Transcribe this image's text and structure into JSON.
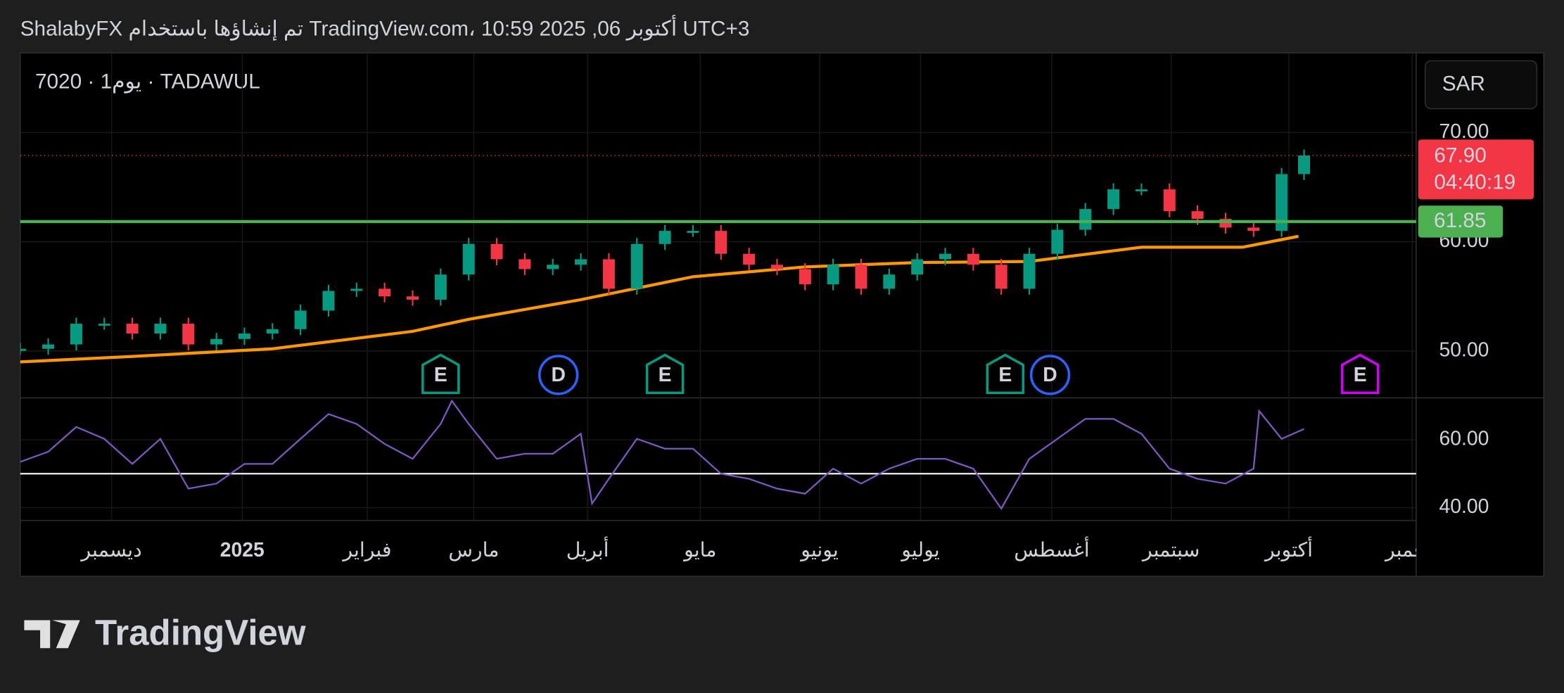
{
  "header": {
    "caption": "ShalabyFX تم إنشاؤها باستخدام TradingView.com، 10:59 2025 ,06 أكتوبر UTC+3",
    "symbol": "7020 · 1يوم · TADAWUL",
    "currency": "SAR",
    "logo": "TradingView"
  },
  "chart_data": {
    "type": "candlestick",
    "x": [
      0,
      5,
      10,
      15,
      20,
      25,
      30,
      35,
      40,
      45,
      50,
      55,
      60,
      65,
      70,
      75,
      80,
      85,
      90,
      95,
      100,
      105,
      110,
      115,
      120,
      125,
      130,
      135,
      140,
      145,
      150,
      155,
      160,
      165,
      170,
      175,
      180,
      185,
      190,
      195,
      200,
      205,
      210,
      215,
      220,
      225,
      229
    ],
    "values": [
      50.2,
      50.6,
      52.5,
      52.5,
      51.6,
      52.5,
      50.6,
      51.1,
      51.6,
      52.0,
      53.7,
      55.5,
      55.7,
      55.0,
      54.7,
      57.0,
      59.8,
      58.4,
      57.5,
      57.9,
      58.4,
      55.7,
      59.8,
      61.0,
      61.0,
      58.9,
      57.9,
      57.5,
      56.1,
      57.9,
      55.7,
      57.0,
      58.4,
      58.9,
      57.9,
      55.7,
      58.9,
      61.1,
      63.0,
      64.8,
      64.8,
      62.8,
      62.1,
      61.3,
      61.0,
      66.2,
      67.9
    ],
    "up_color": "#089981",
    "down_color": "#f23645",
    "ma": {
      "x": [
        0,
        20,
        45,
        70,
        80,
        100,
        120,
        140,
        160,
        180,
        200,
        218,
        228
      ],
      "values": [
        49.0,
        49.5,
        50.2,
        51.8,
        52.9,
        54.7,
        56.8,
        57.7,
        58.1,
        58.2,
        59.5,
        59.5,
        60.5
      ],
      "color": "#ff9800"
    },
    "xlim": [
      0,
      249
    ],
    "xticks": [
      {
        "value": 16.3,
        "label": "ديسمبر"
      },
      {
        "value": 39.6,
        "label": "2025"
      },
      {
        "value": 61.9,
        "label": "فبراير"
      },
      {
        "value": 80.9,
        "label": "مارس"
      },
      {
        "value": 101.2,
        "label": "أبريل"
      },
      {
        "value": 121.3,
        "label": "مايو"
      },
      {
        "value": 142.6,
        "label": "يونيو"
      },
      {
        "value": 160.6,
        "label": "يوليو"
      },
      {
        "value": 184,
        "label": "أغسطس"
      },
      {
        "value": 205.3,
        "label": "سبتمبر"
      },
      {
        "value": 226.3,
        "label": "أكتوبر"
      },
      {
        "value": 248.3,
        "label": "نوفمبر"
      }
    ],
    "ylim": [
      45.8,
      77.3
    ],
    "yticks": [
      {
        "value": 50,
        "label": "50.00"
      },
      {
        "value": 60,
        "label": "60.00"
      },
      {
        "value": 70,
        "label": "70.00"
      }
    ],
    "level": {
      "value": 61.85,
      "label": "61.85",
      "color": "#4caf50"
    },
    "last_price": {
      "value": 67.9,
      "label": "67.90",
      "countdown": "04:40:19",
      "color": "#f23645"
    },
    "events": [
      {
        "label": "E",
        "x": 75,
        "color": "#089981"
      },
      {
        "label": "D",
        "x": 96,
        "color": "#2962ff"
      },
      {
        "label": "E",
        "x": 115,
        "color": "#089981"
      },
      {
        "label": "E",
        "x": 175.7,
        "color": "#089981"
      },
      {
        "label": "D",
        "x": 183.7,
        "color": "#2962ff"
      },
      {
        "label": "E",
        "x": 239,
        "color": "#d500f9"
      }
    ],
    "rsi": {
      "x": [
        0,
        5,
        10,
        15,
        20,
        25,
        30,
        35,
        40,
        45,
        50,
        55,
        60,
        65,
        70,
        75,
        77,
        80,
        85,
        90,
        95,
        100,
        102,
        105,
        110,
        115,
        120,
        125,
        130,
        135,
        140,
        145,
        150,
        155,
        160,
        165,
        170,
        175,
        180,
        185,
        190,
        195,
        200,
        205,
        210,
        215,
        220,
        221,
        225,
        229
      ],
      "values": [
        53.5,
        56.5,
        63.8,
        60.3,
        52.9,
        60.3,
        45.6,
        47.1,
        52.9,
        52.9,
        60.3,
        67.6,
        64.7,
        58.8,
        54.4,
        64.7,
        71.5,
        64.7,
        54.4,
        55.9,
        55.9,
        61.8,
        41.2,
        48.5,
        60.3,
        57.4,
        57.4,
        50.0,
        48.5,
        45.6,
        44.1,
        51.5,
        47.1,
        51.5,
        54.4,
        54.4,
        51.5,
        39.7,
        54.4,
        60.3,
        66.2,
        66.2,
        61.8,
        51.5,
        48.5,
        47.1,
        51.5,
        68.5,
        60.3,
        63.2
      ],
      "color": "#7e57c2",
      "ylim": [
        36.2,
        72.1
      ],
      "yticks": [
        {
          "value": 40,
          "label": "40.00"
        },
        {
          "value": 60,
          "label": "60.00"
        }
      ],
      "midline": 50
    }
  }
}
